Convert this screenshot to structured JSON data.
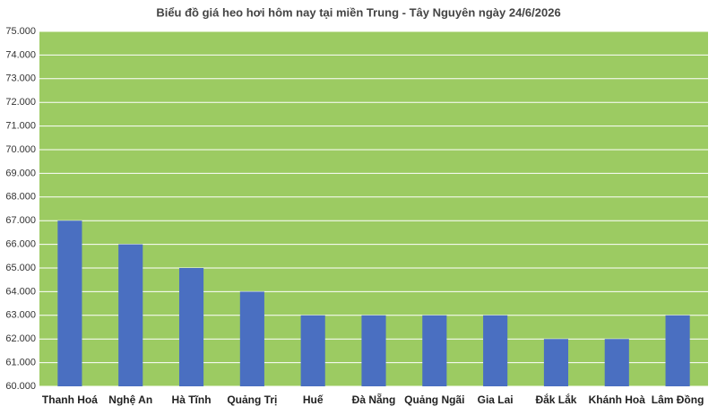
{
  "chart_data": {
    "type": "bar",
    "title": "Biểu đồ giá heo hơi hôm nay tại miền Trung - Tây Nguyên ngày 24/6/2026",
    "categories": [
      "Thanh Hoá",
      "Nghệ An",
      "Hà Tĩnh",
      "Quảng Trị",
      "Huế",
      "Đà Nẵng",
      "Quảng Ngãi",
      "Gia Lai",
      "Đắk Lắk",
      "Khánh Hoà",
      "Lâm Đồng"
    ],
    "values": [
      67000,
      66000,
      65000,
      64000,
      63000,
      63000,
      63000,
      63000,
      62000,
      62000,
      63000
    ],
    "color": "#4a6fc1",
    "plot_background": "#9ccb62",
    "ylim": [
      60000,
      75000
    ],
    "yticks": [
      {
        "value": 60000,
        "label": "60.000"
      },
      {
        "value": 61000,
        "label": "61.000"
      },
      {
        "value": 62000,
        "label": "62.000"
      },
      {
        "value": 63000,
        "label": "63.000"
      },
      {
        "value": 64000,
        "label": "64.000"
      },
      {
        "value": 65000,
        "label": "65.000"
      },
      {
        "value": 66000,
        "label": "66.000"
      },
      {
        "value": 67000,
        "label": "67.000"
      },
      {
        "value": 68000,
        "label": "68.000"
      },
      {
        "value": 69000,
        "label": "69.000"
      },
      {
        "value": 70000,
        "label": "70.000"
      },
      {
        "value": 71000,
        "label": "71.000"
      },
      {
        "value": 72000,
        "label": "72.000"
      },
      {
        "value": 73000,
        "label": "73.000"
      },
      {
        "value": 74000,
        "label": "74.000"
      },
      {
        "value": 75000,
        "label": "75.000"
      }
    ],
    "grid": true
  }
}
